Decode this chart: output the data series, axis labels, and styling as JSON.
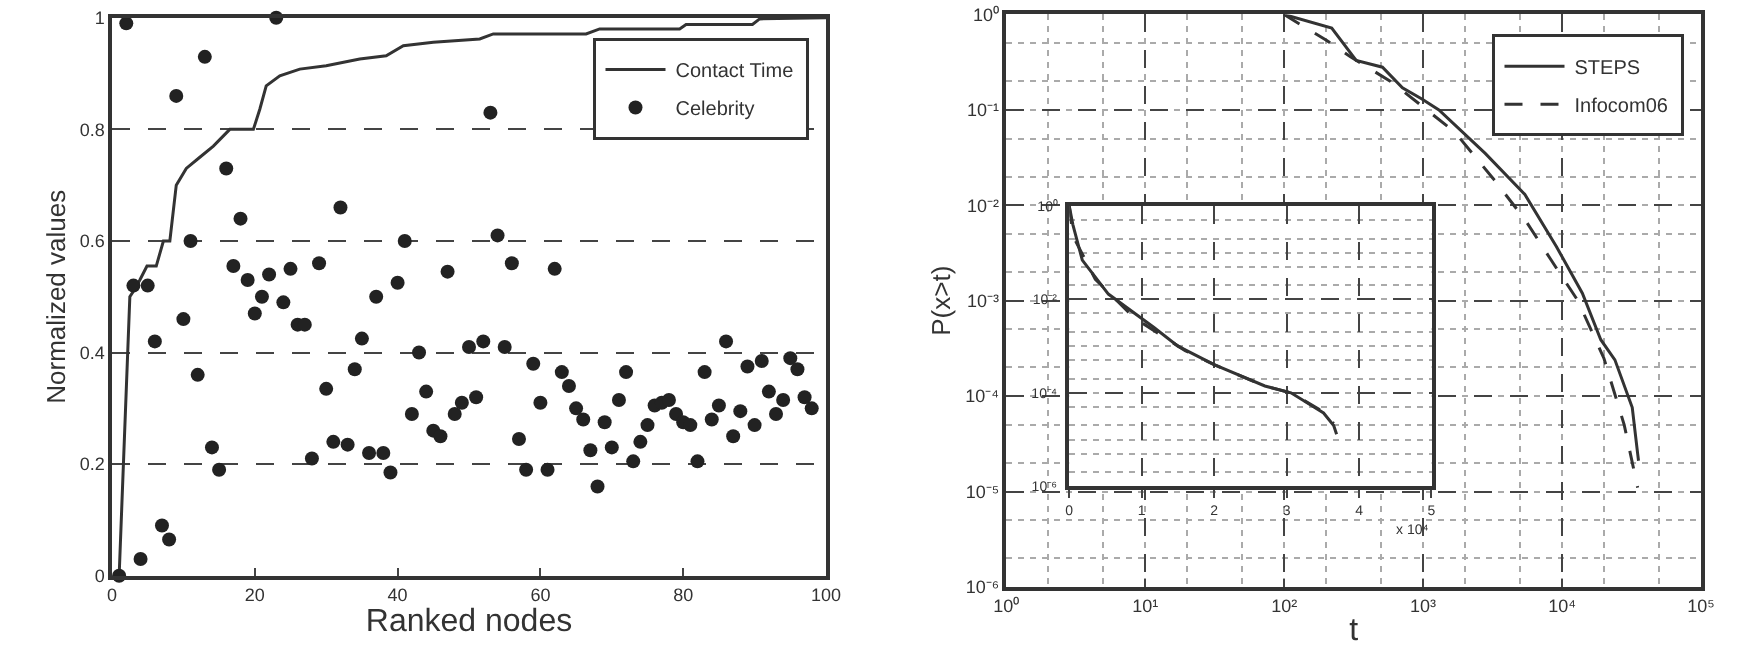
{
  "chart_data": [
    {
      "type": "line",
      "xlabel": "Ranked nodes",
      "ylabel": "Normalized values",
      "xlim": [
        0,
        100
      ],
      "xticks": [
        0,
        20,
        40,
        60,
        80,
        100
      ],
      "ylim": [
        0,
        1
      ],
      "yticks": [
        0,
        0.2,
        0.4,
        0.6,
        0.8,
        1
      ],
      "grid": "y",
      "legend": "top right",
      "series": [
        {
          "name": "Contact Time",
          "type": "line",
          "color": "#333333",
          "x": [
            1,
            2.5,
            3,
            3.9,
            4.9,
            6.2,
            7.2,
            8.1,
            9,
            10.4,
            12.3,
            14.2,
            16.5,
            19.8,
            20.7,
            21.6,
            23.5,
            26.3,
            30,
            34.7,
            38.4,
            40.8,
            45,
            51.5,
            53.4,
            66.4,
            68.3,
            79.5,
            80.4,
            89.7,
            90.7,
            100
          ],
          "values": [
            0,
            0.5,
            0.51,
            0.53,
            0.555,
            0.555,
            0.6,
            0.6,
            0.7,
            0.73,
            0.75,
            0.77,
            0.8,
            0.8,
            0.836,
            0.878,
            0.896,
            0.908,
            0.914,
            0.926,
            0.932,
            0.95,
            0.956,
            0.962,
            0.971,
            0.971,
            0.98,
            0.98,
            0.988,
            0.988,
            0.998,
            1
          ]
        },
        {
          "name": "Celebrity",
          "type": "scatter",
          "marker": "circle",
          "color": "#222222",
          "x": [
            1,
            2,
            3,
            4,
            5,
            6,
            7,
            8,
            9,
            10,
            11,
            12,
            13,
            14,
            15,
            16,
            17,
            18,
            19,
            20,
            21,
            22,
            23,
            24,
            25,
            26,
            27,
            28,
            29,
            30,
            31,
            33,
            34,
            35,
            36,
            37,
            38,
            39,
            40,
            41,
            42,
            43,
            44,
            45,
            46,
            47,
            48,
            49,
            50,
            51,
            52,
            53,
            54,
            55,
            56,
            57,
            58,
            59,
            60,
            61,
            62,
            63,
            64,
            65,
            66,
            67,
            68,
            69,
            70,
            71,
            72,
            73,
            74,
            75,
            76,
            77,
            78,
            79,
            80,
            81,
            82,
            83,
            84,
            85,
            86,
            87,
            88,
            89,
            90,
            91,
            92,
            93,
            94,
            95,
            96,
            97,
            98,
            32
          ],
          "values": [
            0,
            0.99,
            0.52,
            0.03,
            0.52,
            0.42,
            0.09,
            0.065,
            0.86,
            0.46,
            0.6,
            0.36,
            0.93,
            0.23,
            0.19,
            0.73,
            0.555,
            0.64,
            0.53,
            0.47,
            0.5,
            0.54,
            1.0,
            0.49,
            0.55,
            0.45,
            0.45,
            0.21,
            0.56,
            0.335,
            0.24,
            0.235,
            0.37,
            0.425,
            0.22,
            0.5,
            0.22,
            0.185,
            0.525,
            0.6,
            0.29,
            0.4,
            0.33,
            0.26,
            0.25,
            0.545,
            0.29,
            0.31,
            0.41,
            0.32,
            0.42,
            0.83,
            0.61,
            0.41,
            0.56,
            0.245,
            0.19,
            0.38,
            0.31,
            0.19,
            0.55,
            0.365,
            0.34,
            0.3,
            0.28,
            0.225,
            0.16,
            0.275,
            0.23,
            0.315,
            0.365,
            0.205,
            0.24,
            0.27,
            0.305,
            0.31,
            0.315,
            0.29,
            0.275,
            0.27,
            0.205,
            0.365,
            0.28,
            0.305,
            0.42,
            0.25,
            0.295,
            0.375,
            0.27,
            0.385,
            0.33,
            0.29,
            0.315,
            0.39,
            0.37,
            0.32,
            0.3,
            0.66
          ]
        }
      ]
    },
    {
      "type": "line",
      "xlabel": "t",
      "ylabel": "P(x>t)",
      "log": "xy",
      "xlim": [
        1,
        100000
      ],
      "xticks": [
        {
          "value": 1,
          "label": "10⁰"
        },
        {
          "value": 10,
          "label": "10¹"
        },
        {
          "value": 100,
          "label": "10²"
        },
        {
          "value": 1000,
          "label": "10³"
        },
        {
          "value": 10000,
          "label": "10⁴"
        },
        {
          "value": 100000,
          "label": "10⁵"
        }
      ],
      "ylim": [
        1e-06,
        1
      ],
      "yticks": [
        {
          "value": 1e-06,
          "label": "10⁻⁶"
        },
        {
          "value": 1e-05,
          "label": "10⁻⁵"
        },
        {
          "value": 0.0001,
          "label": "10⁻⁴"
        },
        {
          "value": 0.001,
          "label": "10⁻³"
        },
        {
          "value": 0.01,
          "label": "10⁻²"
        },
        {
          "value": 0.1,
          "label": "10⁻¹"
        },
        {
          "value": 1,
          "label": "10⁰"
        }
      ],
      "grid": true,
      "legend": "top right",
      "series": [
        {
          "name": "STEPS",
          "color": "#333333",
          "line_style": "solid",
          "x": [
            100,
            220,
            330,
            510,
            710,
            980,
            1300,
            2800,
            5400,
            9100,
            14000,
            19000,
            24000,
            32000,
            35000,
            35500
          ],
          "values": [
            1,
            0.72,
            0.33,
            0.28,
            0.17,
            0.13,
            0.1,
            0.035,
            0.013,
            0.0037,
            0.0012,
            0.00039,
            0.00024,
            7.6e-05,
            2.5e-05,
            2.1e-05
          ]
        },
        {
          "name": "Infocom06",
          "color": "#333333",
          "line_style": "dashed",
          "x": [
            100,
            130,
            200,
            300,
            580,
            980,
            1700,
            3200,
            5400,
            8300,
            13000,
            20000,
            28000,
            35000
          ],
          "values": [
            1,
            0.79,
            0.54,
            0.36,
            0.2,
            0.11,
            0.058,
            0.019,
            0.0071,
            0.0027,
            0.001,
            0.00025,
            5e-05,
            1.1e-05
          ]
        }
      ]
    },
    {
      "type": "line",
      "log": "y",
      "xlim": [
        0,
        5
      ],
      "xticks": [
        0,
        1,
        2,
        3,
        4,
        5
      ],
      "ylim": [
        1e-06,
        1
      ],
      "yticks": [
        {
          "value": 1e-06,
          "label": "10⁻⁶"
        },
        {
          "value": 0.0001,
          "label": "10⁻⁴"
        },
        {
          "value": 0.01,
          "label": "10⁻²"
        },
        {
          "value": 1,
          "label": "10⁰"
        }
      ],
      "grid": true,
      "annotations": [
        "x 10⁴"
      ],
      "series": [
        {
          "color": "#333333",
          "line_style": "solid",
          "x": [
            0,
            0.05,
            0.18,
            0.54,
            1.17,
            1.5,
            2.0,
            2.7,
            3.06,
            3.51,
            3.65,
            3.69
          ],
          "values": [
            1,
            0.4,
            0.069,
            0.013,
            0.0025,
            0.001,
            0.0004,
            0.00014,
            0.0001,
            3.7e-05,
            2e-05,
            1.3e-05
          ]
        },
        {
          "color": "#333333",
          "line_style": "dashed",
          "x": [
            0,
            0.05,
            0.36,
            0.9,
            1.6,
            2.0,
            2.7,
            3.06,
            3.5,
            3.65
          ],
          "values": [
            1,
            0.23,
            0.027,
            0.004,
            0.0008,
            0.0004,
            0.00014,
            0.0001,
            4e-05,
            2.2e-05
          ]
        }
      ]
    }
  ]
}
